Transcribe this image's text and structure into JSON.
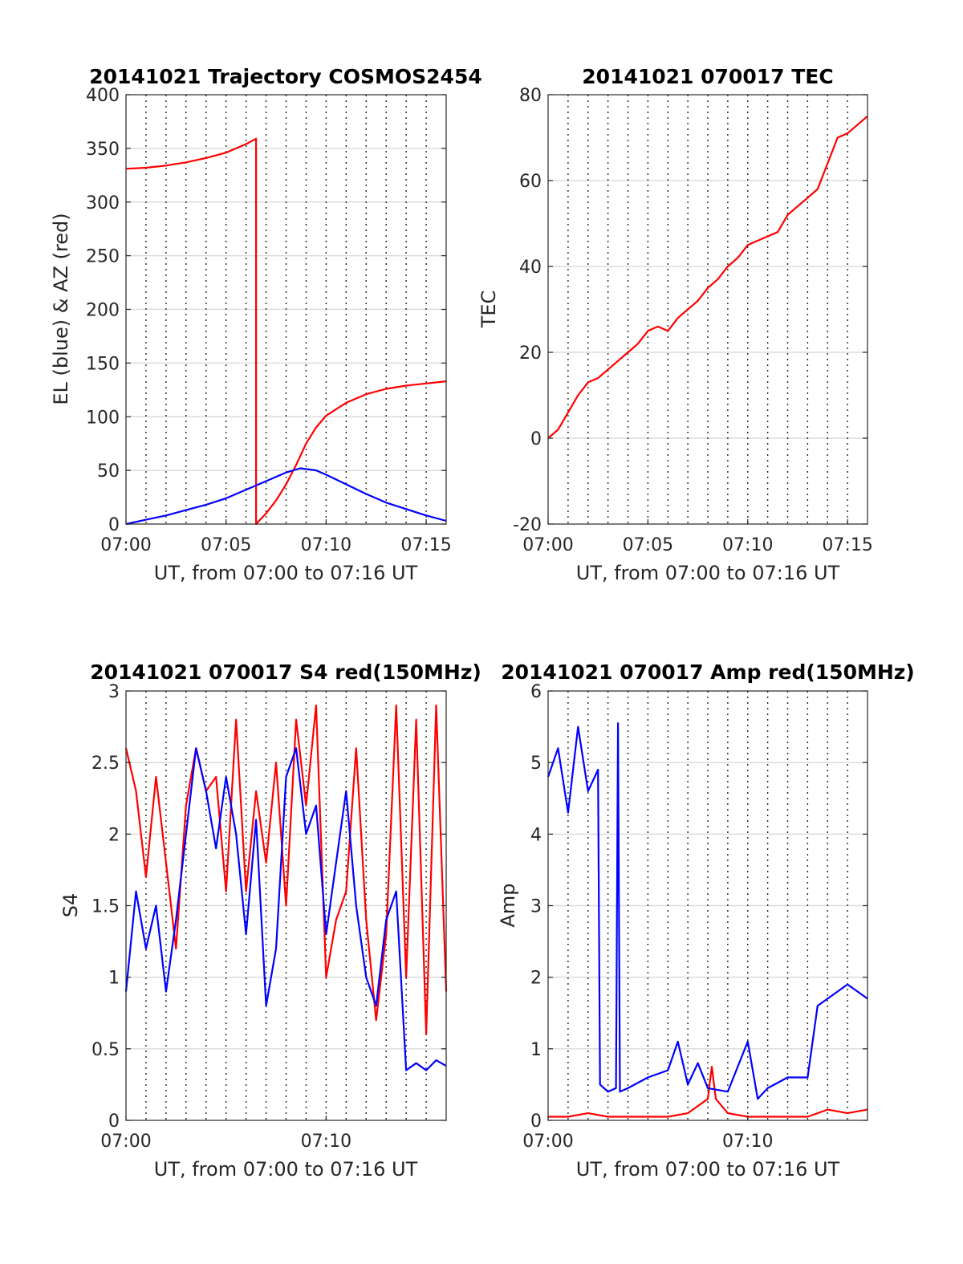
{
  "chart_data": [
    {
      "type": "line",
      "title": "20141021 Trajectory COSMOS2454",
      "xlabel": "UT, from 07:00 to 07:16 UT",
      "ylabel": "EL (blue) & AZ (red)",
      "xlim": [
        0,
        16
      ],
      "ylim": [
        0,
        400
      ],
      "xticks": [
        0,
        5,
        10,
        15
      ],
      "xtick_labels": [
        "07:00",
        "07:05",
        "07:10",
        "07:15"
      ],
      "yticks": [
        0,
        50,
        100,
        150,
        200,
        250,
        300,
        350,
        400
      ],
      "ytick_labels": [
        "0",
        "50",
        "100",
        "150",
        "200",
        "250",
        "300",
        "350",
        "400"
      ],
      "grid_minutes": [
        1,
        2,
        3,
        4,
        5,
        6,
        7,
        8,
        9,
        10,
        11,
        12,
        13,
        14,
        15
      ],
      "series": [
        {
          "color": "#ff0000",
          "x": [
            0,
            1,
            2,
            3,
            4,
            5,
            6,
            6.5,
            6.5,
            7,
            7.5,
            8,
            8.5,
            9,
            9.5,
            10,
            11,
            12,
            13,
            14,
            15,
            16
          ],
          "y": [
            331,
            332,
            334,
            337,
            341,
            346,
            354,
            359,
            0,
            10,
            22,
            37,
            55,
            75,
            90,
            101,
            113,
            121,
            126,
            129,
            131,
            133
          ]
        },
        {
          "color": "#0000ff",
          "x": [
            0,
            1,
            2,
            3,
            4,
            5,
            6,
            7,
            8,
            8.7,
            9.5,
            10,
            11,
            12,
            13,
            14,
            15,
            16
          ],
          "y": [
            0,
            4,
            8,
            13,
            18,
            24,
            32,
            40,
            48,
            52,
            50,
            46,
            37,
            28,
            20,
            14,
            8,
            3
          ]
        }
      ]
    },
    {
      "type": "line",
      "title": "20141021 070017 TEC",
      "xlabel": "UT, from 07:00 to 07:16 UT",
      "ylabel": "TEC",
      "xlim": [
        0,
        16
      ],
      "ylim": [
        -20,
        80
      ],
      "xticks": [
        0,
        5,
        10,
        15
      ],
      "xtick_labels": [
        "07:00",
        "07:05",
        "07:10",
        "07:15"
      ],
      "yticks": [
        -20,
        0,
        20,
        40,
        60,
        80
      ],
      "ytick_labels": [
        "-20",
        "0",
        "20",
        "40",
        "60",
        "80"
      ],
      "grid_minutes": [
        1,
        2,
        3,
        4,
        5,
        6,
        7,
        8,
        9,
        10,
        11,
        12,
        13,
        14,
        15
      ],
      "series": [
        {
          "color": "#ff0000",
          "x": [
            0,
            0.5,
            1,
            1.5,
            2,
            2.5,
            3,
            3.5,
            4,
            4.5,
            5,
            5.5,
            6,
            6.5,
            7,
            7.5,
            8,
            8.5,
            9,
            9.5,
            10,
            10.5,
            11,
            11.5,
            12,
            12.5,
            13,
            13.5,
            14,
            14.5,
            15,
            15.5,
            16
          ],
          "y": [
            0,
            2,
            6,
            10,
            13,
            14,
            16,
            18,
            20,
            22,
            25,
            26,
            25,
            28,
            30,
            32,
            35,
            37,
            40,
            42,
            45,
            46,
            47,
            48,
            52,
            54,
            56,
            58,
            64,
            70,
            71,
            73,
            75
          ]
        }
      ]
    },
    {
      "type": "line",
      "title": "20141021 070017 S4 red(150MHz)",
      "xlabel": "UT, from 07:00 to 07:16 UT",
      "ylabel": "S4",
      "xlim": [
        0,
        16
      ],
      "ylim": [
        0,
        3
      ],
      "xticks": [
        0,
        10
      ],
      "xtick_labels": [
        "07:00",
        "07:10"
      ],
      "yticks": [
        0,
        0.5,
        1,
        1.5,
        2,
        2.5,
        3
      ],
      "ytick_labels": [
        "0",
        "0.5",
        "1",
        "1.5",
        "2",
        "2.5",
        "3"
      ],
      "grid_minutes": [
        1,
        2,
        3,
        4,
        5,
        6,
        7,
        8,
        9,
        10,
        11,
        12,
        13,
        14,
        15
      ],
      "series": [
        {
          "color": "#ff0000",
          "x": [
            0,
            0.5,
            1,
            1.5,
            2,
            2.5,
            3,
            3.5,
            4,
            4.5,
            5,
            5.5,
            6,
            6.5,
            7,
            7.5,
            8,
            8.5,
            9,
            9.5,
            10,
            10.5,
            11,
            11.5,
            12,
            12.5,
            13,
            13.5,
            14,
            14.5,
            15,
            15.5,
            16
          ],
          "y": [
            2.6,
            2.3,
            1.7,
            2.4,
            1.8,
            1.2,
            2.2,
            2.6,
            2.3,
            2.4,
            1.6,
            2.8,
            1.6,
            2.3,
            1.8,
            2.5,
            1.5,
            2.8,
            2.2,
            2.9,
            1.0,
            1.4,
            1.6,
            2.6,
            1.4,
            0.7,
            1.3,
            2.9,
            1.0,
            2.8,
            0.6,
            2.9,
            0.9
          ]
        },
        {
          "color": "#0000ff",
          "x": [
            0,
            0.5,
            1,
            1.5,
            2,
            2.5,
            3,
            3.5,
            4,
            4.5,
            5,
            5.5,
            6,
            6.5,
            7,
            7.5,
            8,
            8.5,
            9,
            9.5,
            10,
            10.5,
            11,
            11.5,
            12,
            12.5,
            13,
            13.5,
            14,
            14.5,
            15,
            15.5,
            16
          ],
          "y": [
            0.9,
            1.6,
            1.2,
            1.5,
            0.9,
            1.4,
            2.0,
            2.6,
            2.3,
            1.9,
            2.4,
            2.0,
            1.3,
            2.1,
            0.8,
            1.2,
            2.4,
            2.6,
            2.0,
            2.2,
            1.3,
            1.8,
            2.3,
            1.5,
            1.0,
            0.8,
            1.4,
            1.6,
            0.35,
            0.4,
            0.35,
            0.42,
            0.38
          ]
        }
      ]
    },
    {
      "type": "line",
      "title": "20141021 070017 Amp red(150MHz)",
      "xlabel": "UT, from 07:00 to 07:16 UT",
      "ylabel": "Amp",
      "xlim": [
        0,
        16
      ],
      "ylim": [
        0,
        6
      ],
      "xticks": [
        0,
        10
      ],
      "xtick_labels": [
        "07:00",
        "07:10"
      ],
      "yticks": [
        0,
        1,
        2,
        3,
        4,
        5,
        6
      ],
      "ytick_labels": [
        "0",
        "1",
        "2",
        "3",
        "4",
        "5",
        "6"
      ],
      "grid_minutes": [
        1,
        2,
        3,
        4,
        5,
        6,
        7,
        8,
        9,
        10,
        11,
        12,
        13,
        14,
        15
      ],
      "series": [
        {
          "color": "#ff0000",
          "x": [
            0,
            1,
            2,
            3,
            4,
            5,
            6,
            7,
            8,
            8.2,
            8.4,
            9,
            10,
            11,
            12,
            13,
            13.5,
            14,
            15,
            16
          ],
          "y": [
            0.05,
            0.05,
            0.1,
            0.05,
            0.05,
            0.05,
            0.05,
            0.1,
            0.3,
            0.75,
            0.3,
            0.1,
            0.05,
            0.05,
            0.05,
            0.05,
            0.1,
            0.15,
            0.1,
            0.15
          ]
        },
        {
          "color": "#0000ff",
          "x": [
            0,
            0.5,
            1,
            1.5,
            2,
            2.5,
            2.6,
            3,
            3.4,
            3.5,
            3.6,
            4,
            5,
            6,
            6.5,
            7,
            7.5,
            8,
            9,
            10,
            10.5,
            11,
            12,
            13,
            13.5,
            14,
            15,
            16
          ],
          "y": [
            4.8,
            5.2,
            4.3,
            5.5,
            4.6,
            4.9,
            0.5,
            0.4,
            0.45,
            5.55,
            0.4,
            0.45,
            0.6,
            0.7,
            1.1,
            0.5,
            0.8,
            0.45,
            0.4,
            1.1,
            0.3,
            0.45,
            0.6,
            0.6,
            1.6,
            1.7,
            1.9,
            1.7
          ]
        }
      ]
    }
  ]
}
